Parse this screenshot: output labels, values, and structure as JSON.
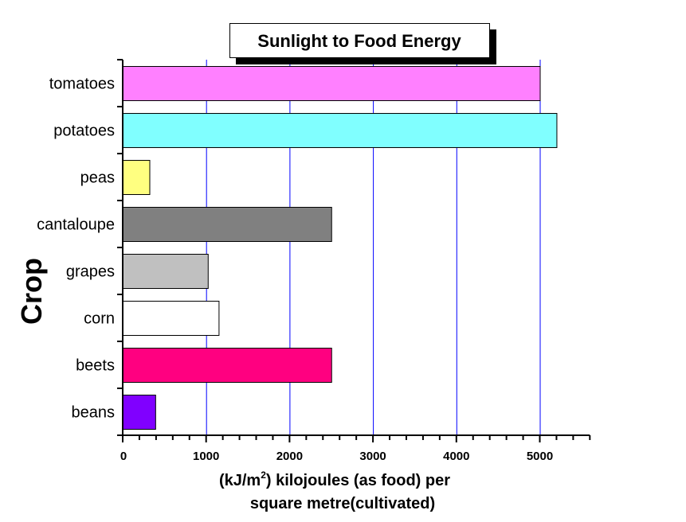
{
  "chart_data": {
    "type": "bar",
    "orientation": "horizontal",
    "title": "Sunlight to Food Energy",
    "xlabel_line1_prefix": "(kJ/m",
    "xlabel_sup": "2",
    "xlabel_line1_suffix": ") kilojoules (as food) per",
    "xlabel_line2": "square metre(cultivated)",
    "ylabel": "Crop",
    "categories": [
      "tomatoes",
      "potatoes",
      "peas",
      "cantaloupe",
      "grapes",
      "corn",
      "beets",
      "beans"
    ],
    "values": [
      5000,
      5200,
      320,
      2500,
      1020,
      1150,
      2500,
      390
    ],
    "colors": [
      "#ff80ff",
      "#80ffff",
      "#ffff80",
      "#808080",
      "#c0c0c0",
      "#ffffff",
      "#ff0080",
      "#8000ff"
    ],
    "xlim": [
      0,
      5600
    ],
    "xticks": [
      0,
      1000,
      2000,
      3000,
      4000,
      5000
    ],
    "xtick_labels": [
      "0",
      "1000",
      "2000",
      "3000",
      "4000",
      "5000"
    ],
    "minor_tick_step": 200,
    "grid": "vertical",
    "grid_color": "#0000ff",
    "legend": "none"
  }
}
